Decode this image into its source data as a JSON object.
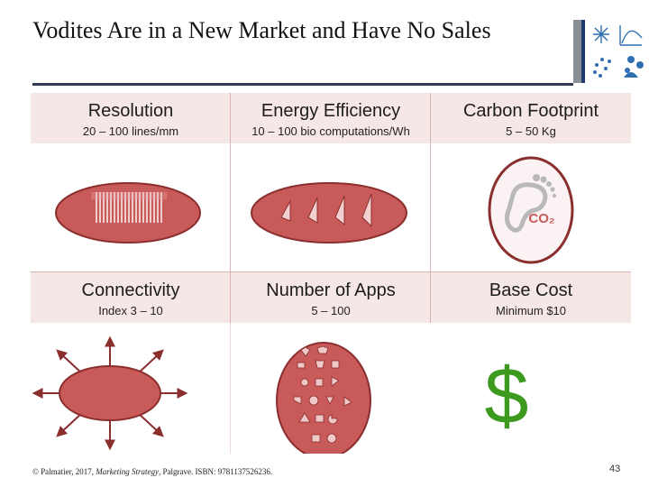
{
  "slide": {
    "title": "Vodites Are in a New Market and Have No Sales",
    "footer": {
      "prefix": "© Palmatier, 2017, ",
      "book": "Marketing Strategy",
      "suffix": ", Palgrave. ISBN: 9781137526236."
    },
    "page_number": "43"
  },
  "features": [
    {
      "title": "Resolution",
      "value": "20 – 100 lines/mm",
      "icon": "line-grid-oval-icon"
    },
    {
      "title": "Energy Efficiency",
      "value": "10 – 100 bio computations/Wh",
      "icon": "energy-cones-oval-icon"
    },
    {
      "title": "Carbon Footprint",
      "value": "5 – 50 Kg",
      "icon": "co2-footprint-icon",
      "icon_text": "CO₂"
    },
    {
      "title": "Connectivity",
      "value": "Index 3 – 10",
      "icon": "connectivity-arrows-icon"
    },
    {
      "title": "Number of Apps",
      "value": "5 – 100",
      "icon": "apps-shapes-oval-icon"
    },
    {
      "title": "Base Cost",
      "value": "Minimum $10",
      "icon": "dollar-sign-icon",
      "icon_text": "$"
    }
  ],
  "colors": {
    "header_fill": "#f6e7e7",
    "oval_fill": "#c95a5a",
    "oval_stroke": "#8a2e2e",
    "dollar_green": "#3c9a1e",
    "title_rule": "#2e3b52"
  }
}
